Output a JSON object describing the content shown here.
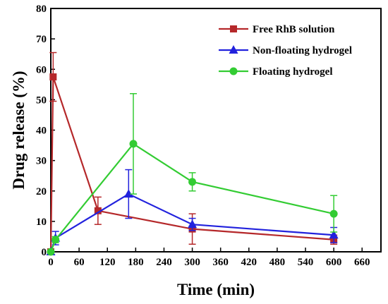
{
  "chart_data": {
    "type": "line",
    "title": "",
    "xlabel": "Time (min)",
    "ylabel": "Drug release (%)",
    "xlim": [
      0,
      700
    ],
    "ylim": [
      0,
      80
    ],
    "xticks": [
      0,
      60,
      120,
      180,
      240,
      300,
      360,
      420,
      480,
      540,
      600,
      660
    ],
    "yticks": [
      0,
      10,
      20,
      30,
      40,
      50,
      60,
      70,
      80
    ],
    "legend_position": "top-right",
    "grid": false,
    "series": [
      {
        "name": "Free RhB solution",
        "color": "#b5282a",
        "marker": "square",
        "points": [
          {
            "x": 0,
            "y": 0,
            "err": 0
          },
          {
            "x": 5,
            "y": 57.5,
            "err": 8
          },
          {
            "x": 100,
            "y": 13.5,
            "err": 4.5
          },
          {
            "x": 300,
            "y": 7.5,
            "err": 5
          },
          {
            "x": 600,
            "y": 4,
            "err": 1.5
          }
        ]
      },
      {
        "name": "Non-floating hydrogel",
        "color": "#2222dd",
        "marker": "triangle",
        "points": [
          {
            "x": 0,
            "y": 0,
            "err": 0
          },
          {
            "x": 10,
            "y": 4.5,
            "err": 2.2
          },
          {
            "x": 165,
            "y": 19,
            "err": 8
          },
          {
            "x": 300,
            "y": 9,
            "err": 2
          },
          {
            "x": 600,
            "y": 5.5,
            "err": 2.5
          }
        ]
      },
      {
        "name": "Floating hydrogel",
        "color": "#33cc33",
        "marker": "circle",
        "points": [
          {
            "x": 0,
            "y": 0,
            "err": 0
          },
          {
            "x": 10,
            "y": 4,
            "err": 1
          },
          {
            "x": 175,
            "y": 35.5,
            "err": 16.5
          },
          {
            "x": 300,
            "y": 23,
            "err": 3
          },
          {
            "x": 600,
            "y": 12.5,
            "err": 6
          }
        ]
      }
    ]
  }
}
